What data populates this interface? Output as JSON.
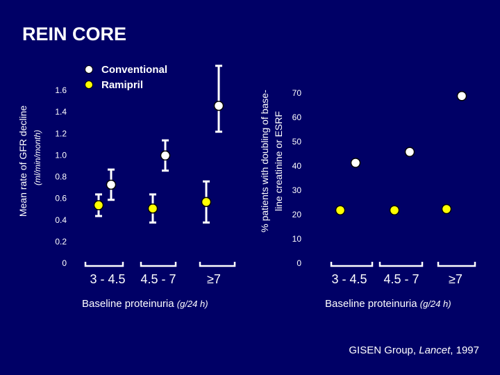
{
  "slide_title": "REIN CORE",
  "colors": {
    "background": "#000066",
    "conventional": "#ffffff",
    "ramipril": "#ffff00",
    "text": "#ffffff",
    "marker_outline": "#000000"
  },
  "legend": {
    "conventional": "Conventional",
    "ramipril": "Ramipril"
  },
  "citation": {
    "authors": "GISEN Group, ",
    "journal": "Lancet",
    "year": ", 1997"
  },
  "chart_data": [
    {
      "type": "scatter",
      "ylabel": "Mean rate of GFR decline",
      "ylabel_units": "(ml/min/month)",
      "xlabel": "Baseline proteinuria",
      "xlabel_units": "(g/24 h)",
      "categories": [
        "3 - 4.5",
        "4.5 - 7",
        "≥7"
      ],
      "ylim": [
        0,
        1.6
      ],
      "yticks": [
        0,
        0.2,
        0.4,
        0.6,
        0.8,
        1.0,
        1.2,
        1.4,
        1.6
      ],
      "ytick_labels": [
        "0",
        "0.2",
        "0.4",
        "0.6",
        "0.8",
        "1.0",
        "1.2",
        "1.4",
        "1.6"
      ],
      "series": [
        {
          "name": "Conventional",
          "values": [
            0.72,
            0.99,
            1.45
          ],
          "err_low": [
            0.58,
            0.85,
            1.21
          ],
          "err_high": [
            0.86,
            1.13,
            1.82
          ]
        },
        {
          "name": "Ramipril",
          "values": [
            0.53,
            0.5,
            0.56
          ],
          "err_low": [
            0.43,
            0.37,
            0.37
          ],
          "err_high": [
            0.63,
            0.63,
            0.75
          ]
        }
      ]
    },
    {
      "type": "scatter",
      "ylabel": "% patients with doubling of base-",
      "ylabel_line2": "line creatinine or ESRF",
      "xlabel": "Baseline proteinuria",
      "xlabel_units": "(g/24 h)",
      "categories": [
        "3 - 4.5",
        "4.5 - 7",
        "≥7"
      ],
      "ylim": [
        0,
        70
      ],
      "yticks": [
        0,
        10,
        20,
        30,
        40,
        50,
        60,
        70
      ],
      "ytick_labels": [
        "0",
        "10",
        "20",
        "30",
        "40",
        "50",
        "60",
        "70"
      ],
      "series": [
        {
          "name": "Conventional",
          "values": [
            41,
            45.5,
            68.5
          ]
        },
        {
          "name": "Ramipril",
          "values": [
            21.5,
            21.5,
            22
          ]
        }
      ]
    }
  ]
}
